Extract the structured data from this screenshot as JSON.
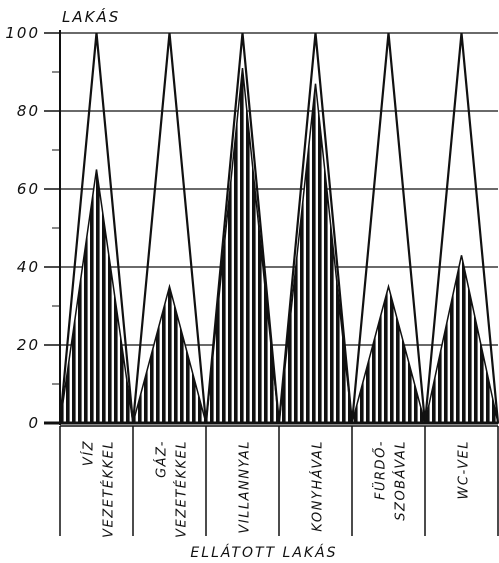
{
  "chart_data": {
    "type": "area",
    "title": "",
    "ylabel": "LAKÁS",
    "xlabel": "ELLÁTOTT LAKÁS",
    "ylim": [
      0,
      100
    ],
    "y_ticks": [
      0,
      20,
      40,
      60,
      80,
      100
    ],
    "y_tick_labels": [
      "0",
      "20",
      "40",
      "60",
      "80",
      "100"
    ],
    "grid": true,
    "categories": [
      {
        "line1": "VÍZ",
        "line2": "VEZETÉKKEL"
      },
      {
        "line1": "GÁZ-",
        "line2": "VEZETÉKKEL"
      },
      {
        "line1": "",
        "line2": "VILLANNYAL"
      },
      {
        "line1": "",
        "line2": "KONYHÁVAL"
      },
      {
        "line1": "FÜRDŐ-",
        "line2": "SZOBÁVAL"
      },
      {
        "line1": "",
        "line2": "WC-VEL"
      }
    ],
    "series": [
      {
        "name": "",
        "values": [
          100,
          100,
          100,
          100,
          100,
          100
        ]
      },
      {
        "name": "",
        "values": [
          65,
          35,
          91,
          87,
          35,
          43
        ]
      }
    ],
    "colors": {
      "ink": "#111111",
      "paper": "#ffffff"
    }
  }
}
